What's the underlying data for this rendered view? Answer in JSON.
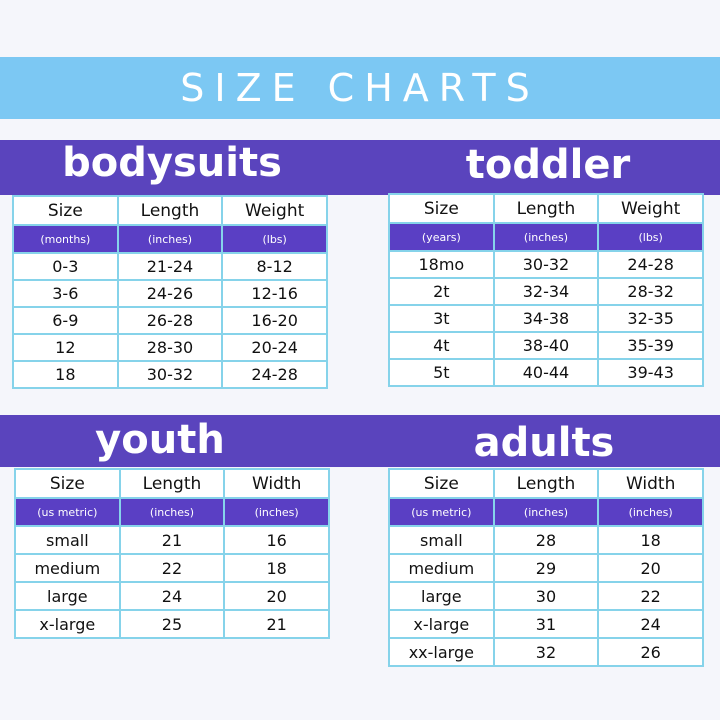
{
  "header": {
    "title": "SIZE CHARTS"
  },
  "tables": [
    {
      "title": "bodysuits",
      "columns": [
        "Size",
        "Length",
        "Weight"
      ],
      "units": [
        "(months)",
        "(inches)",
        "(lbs)"
      ],
      "rows": [
        [
          "0-3",
          "21-24",
          "8-12"
        ],
        [
          "3-6",
          "24-26",
          "12-16"
        ],
        [
          "6-9",
          "26-28",
          "16-20"
        ],
        [
          "12",
          "28-30",
          "20-24"
        ],
        [
          "18",
          "30-32",
          "24-28"
        ]
      ]
    },
    {
      "title": "toddler",
      "columns": [
        "Size",
        "Length",
        "Weight"
      ],
      "units": [
        "(years)",
        "(inches)",
        "(lbs)"
      ],
      "rows": [
        [
          "18mo",
          "30-32",
          "24-28"
        ],
        [
          "2t",
          "32-34",
          "28-32"
        ],
        [
          "3t",
          "34-38",
          "32-35"
        ],
        [
          "4t",
          "38-40",
          "35-39"
        ],
        [
          "5t",
          "40-44",
          "39-43"
        ]
      ]
    },
    {
      "title": "youth",
      "columns": [
        "Size",
        "Length",
        "Width"
      ],
      "units": [
        "(us metric)",
        "(inches)",
        "(inches)"
      ],
      "rows": [
        [
          "small",
          "21",
          "16"
        ],
        [
          "medium",
          "22",
          "18"
        ],
        [
          "large",
          "24",
          "20"
        ],
        [
          "x-large",
          "25",
          "21"
        ]
      ]
    },
    {
      "title": "adults",
      "columns": [
        "Size",
        "Length",
        "Width"
      ],
      "units": [
        "(us metric)",
        "(inches)",
        "(inches)"
      ],
      "rows": [
        [
          "small",
          "28",
          "18"
        ],
        [
          "medium",
          "29",
          "20"
        ],
        [
          "large",
          "30",
          "22"
        ],
        [
          "x-large",
          "31",
          "24"
        ],
        [
          "xx-large",
          "32",
          "26"
        ]
      ]
    }
  ]
}
